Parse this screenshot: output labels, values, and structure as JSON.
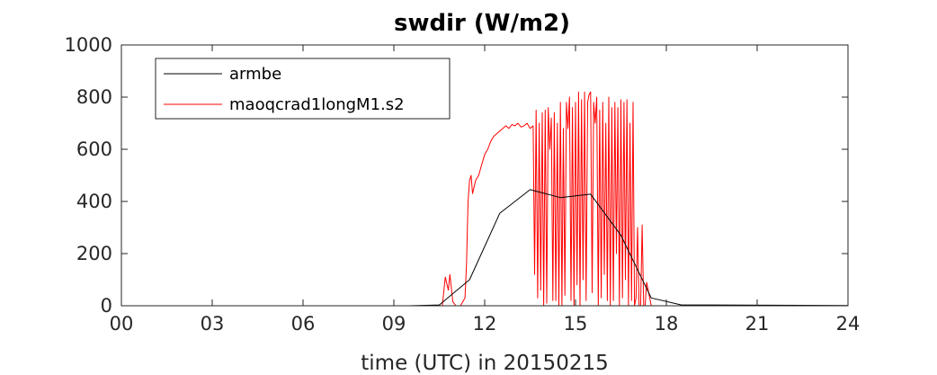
{
  "chart_data": {
    "type": "line",
    "title": "swdir  (W/m2)",
    "xlabel": "time (UTC) in 20150215",
    "ylabel": "",
    "xlim": [
      0,
      24
    ],
    "ylim": [
      0,
      1000
    ],
    "x_ticks": [
      0,
      3,
      6,
      9,
      12,
      15,
      18,
      21,
      24
    ],
    "x_tick_labels": [
      "00",
      "03",
      "06",
      "09",
      "12",
      "15",
      "18",
      "21",
      "24"
    ],
    "y_ticks": [
      0,
      200,
      400,
      600,
      800,
      1000
    ],
    "y_tick_labels": [
      "0",
      "200",
      "400",
      "600",
      "800",
      "1000"
    ],
    "grid": false,
    "legend_position": "top-left",
    "series": [
      {
        "name": "armbe",
        "color": "#000000",
        "x": [
          0,
          9.5,
          10.5,
          11.5,
          12.5,
          13.5,
          14.5,
          15.5,
          16.5,
          17.5,
          18.5,
          19.5,
          24
        ],
        "y": [
          0,
          0,
          3,
          100,
          355,
          445,
          415,
          428,
          270,
          30,
          3,
          3,
          1
        ]
      },
      {
        "name": "maoqcrad1longM1.s2",
        "color": "#ff0000",
        "x": [
          0,
          10.6,
          10.7,
          10.8,
          10.85,
          10.95,
          11.05,
          11.1,
          11.2,
          11.35,
          11.4,
          11.45,
          11.5,
          11.55,
          11.6,
          11.7,
          11.8,
          11.9,
          12.0,
          12.1,
          12.2,
          12.3,
          12.4,
          12.5,
          12.6,
          12.7,
          12.8,
          12.9,
          13.0,
          13.1,
          13.2,
          13.3,
          13.4,
          13.5,
          13.6,
          13.65,
          13.7,
          13.75,
          13.8,
          13.85,
          13.9,
          13.95,
          14.0,
          14.05,
          14.1,
          14.15,
          14.2,
          14.25,
          14.3,
          14.35,
          14.4,
          14.45,
          14.5,
          14.55,
          14.6,
          14.65,
          14.7,
          14.75,
          14.8,
          14.85,
          14.9,
          14.95,
          15.0,
          15.05,
          15.1,
          15.15,
          15.2,
          15.25,
          15.3,
          15.35,
          15.4,
          15.45,
          15.5,
          15.55,
          15.6,
          15.65,
          15.7,
          15.75,
          15.8,
          15.85,
          15.9,
          15.95,
          16.0,
          16.05,
          16.1,
          16.15,
          16.2,
          16.25,
          16.3,
          16.35,
          16.4,
          16.45,
          16.5,
          16.55,
          16.6,
          16.65,
          16.7,
          16.75,
          16.8,
          16.85,
          16.9,
          16.95,
          17.0,
          17.05,
          17.1,
          17.15,
          17.2,
          17.25,
          17.3,
          17.35,
          17.5,
          24
        ],
        "y": [
          0,
          0,
          110,
          60,
          120,
          15,
          0,
          0,
          0,
          30,
          160,
          400,
          480,
          500,
          430,
          480,
          500,
          540,
          580,
          600,
          630,
          650,
          660,
          670,
          680,
          690,
          680,
          695,
          690,
          700,
          685,
          690,
          700,
          680,
          690,
          120,
          750,
          30,
          700,
          60,
          740,
          0,
          750,
          10,
          760,
          600,
          720,
          20,
          740,
          20,
          700,
          0,
          780,
          0,
          680,
          40,
          780,
          680,
          800,
          20,
          760,
          0,
          780,
          80,
          820,
          0,
          790,
          100,
          820,
          20,
          780,
          810,
          820,
          50,
          780,
          700,
          800,
          0,
          750,
          30,
          780,
          120,
          700,
          20,
          800,
          0,
          760,
          20,
          780,
          200,
          760,
          0,
          790,
          30,
          780,
          100,
          790,
          0,
          700,
          20,
          780,
          0,
          30,
          300,
          0,
          0,
          310,
          0,
          0,
          90,
          0,
          0
        ]
      }
    ]
  }
}
